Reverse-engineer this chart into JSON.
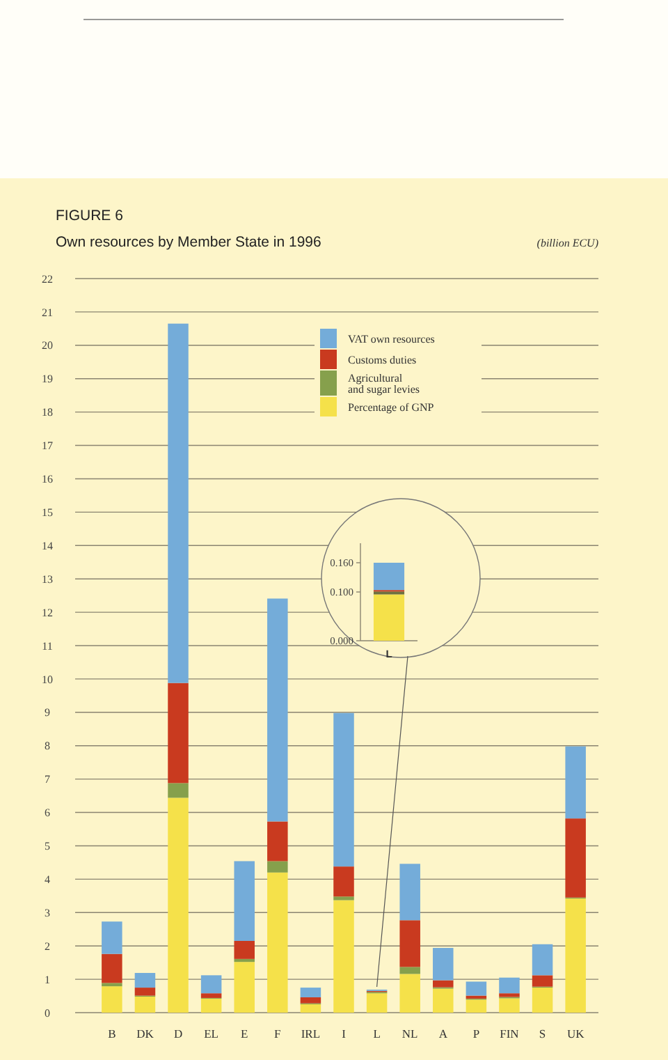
{
  "chart_data": [
    {
      "type": "bar",
      "title": "FIGURE 6",
      "subtitle": "Own resources by Member State in 1996",
      "ylabel": "(billion ECU)",
      "stacked": true,
      "grid": "y",
      "legend": "top",
      "categories": [
        "B",
        "DK",
        "D",
        "EL",
        "E",
        "F",
        "IRL",
        "I",
        "L",
        "NL",
        "A",
        "P",
        "FIN",
        "S",
        "UK"
      ],
      "ylim": [
        0,
        22
      ],
      "yticks": [
        0,
        1,
        2,
        3,
        4,
        5,
        6,
        7,
        8,
        9,
        10,
        11,
        12,
        13,
        14,
        15,
        16,
        17,
        18,
        19,
        20,
        21,
        22
      ],
      "series": [
        {
          "name": "Percentage of GNP",
          "color": "#f5e14a",
          "values": [
            0.79,
            0.48,
            6.44,
            0.42,
            1.52,
            4.2,
            0.25,
            3.37,
            0.58,
            1.16,
            0.72,
            0.39,
            0.43,
            0.75,
            3.42
          ]
        },
        {
          "name": "Agricultural\nand sugar levies",
          "color": "#86a04c",
          "values": [
            0.1,
            0.03,
            0.44,
            0.02,
            0.09,
            0.34,
            0.03,
            0.11,
            0.04,
            0.21,
            0.04,
            0.03,
            0.04,
            0.03,
            0.03
          ]
        },
        {
          "name": "Customs duties",
          "color": "#c93a1f",
          "values": [
            0.87,
            0.24,
            3.0,
            0.14,
            0.54,
            1.19,
            0.18,
            0.9,
            0.03,
            1.4,
            0.21,
            0.09,
            0.11,
            0.34,
            2.37
          ]
        },
        {
          "name": "VAT own resources",
          "color": "#74acd9",
          "values": [
            0.97,
            0.44,
            10.77,
            0.54,
            2.39,
            6.68,
            0.29,
            4.6,
            0.04,
            1.69,
            0.97,
            0.42,
            0.47,
            0.93,
            2.16
          ]
        }
      ]
    },
    {
      "type": "bar",
      "stacked": true,
      "categories": [
        "L"
      ],
      "ylim": [
        0,
        0.2
      ],
      "yticks": [
        {
          "value": 0,
          "label": "0.000"
        },
        {
          "value": 0.1,
          "label": "0.100"
        },
        {
          "value": 0.16,
          "label": "0.160"
        }
      ],
      "series": [
        {
          "color": "#f5e14a",
          "values": [
            0.095
          ]
        },
        {
          "color": "#6f7040",
          "values": [
            0.006
          ]
        },
        {
          "color": "#c93a1f",
          "values": [
            0.003
          ]
        },
        {
          "color": "#74acd9",
          "values": [
            0.056
          ]
        }
      ]
    }
  ]
}
